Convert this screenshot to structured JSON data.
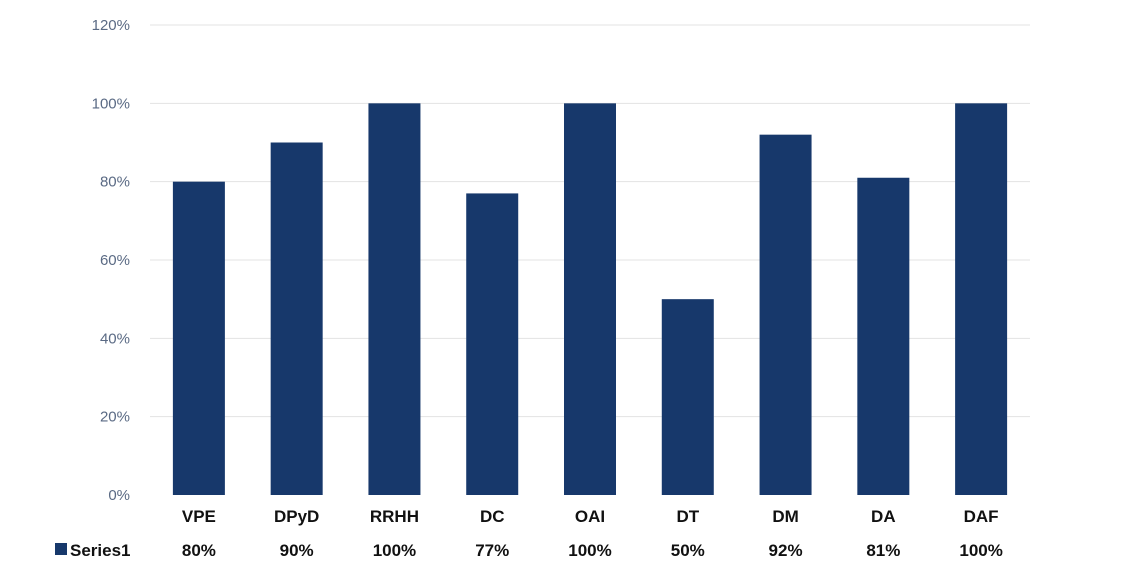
{
  "chart_data": {
    "type": "bar",
    "categories": [
      "VPE",
      "DPyD",
      "RRHH",
      "DC",
      "OAI",
      "DT",
      "DM",
      "DA",
      "DAF"
    ],
    "series": [
      {
        "name": "Series1",
        "values": [
          80,
          90,
          100,
          77,
          100,
          50,
          92,
          81,
          100
        ]
      }
    ],
    "value_labels": [
      "80%",
      "90%",
      "100%",
      "77%",
      "100%",
      "50%",
      "92%",
      "81%",
      "100%"
    ],
    "y_ticks": [
      "0%",
      "20%",
      "40%",
      "60%",
      "80%",
      "100%",
      "120%"
    ],
    "ylim": [
      0,
      120
    ],
    "grid": true,
    "legend": "data-table-bottom",
    "bar_color": "#17386b"
  }
}
